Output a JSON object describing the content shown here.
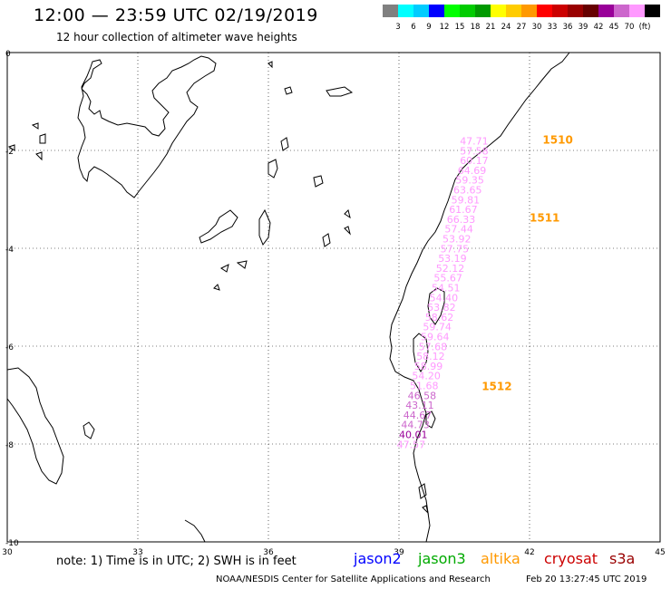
{
  "header": {
    "title": "12:00 — 23:59 UTC 02/19/2019",
    "subtitle": "12 hour collection of altimeter wave heights"
  },
  "colorbar": {
    "colors": [
      "#808080",
      "#00ffff",
      "#00ccff",
      "#0000ff",
      "#00ff00",
      "#00cc00",
      "#009900",
      "#ffff00",
      "#ffcc00",
      "#ff9900",
      "#ff0000",
      "#cc0000",
      "#990000",
      "#660000",
      "#990099",
      "#cc66cc",
      "#ff99ff",
      "#000000"
    ],
    "labels": [
      "3",
      "6",
      "9",
      "12",
      "15",
      "18",
      "21",
      "24",
      "27",
      "30",
      "33",
      "36",
      "39",
      "42",
      "45",
      "70",
      "(ft)"
    ]
  },
  "axes": {
    "x_ticks": [
      "30",
      "33",
      "36",
      "39",
      "42",
      "45"
    ],
    "y_ticks": [
      "0",
      "-2",
      "-4",
      "-6",
      "-8",
      "-10"
    ],
    "lon_range": [
      30,
      45
    ],
    "lat_range": [
      -10,
      0
    ],
    "grid": true
  },
  "passes": [
    {
      "label": "1510",
      "lon": 42.3,
      "lat": -1.86
    },
    {
      "label": "1511",
      "lon": 42.0,
      "lat": -3.45
    },
    {
      "label": "1512",
      "lon": 40.9,
      "lat": -6.9
    }
  ],
  "swh_readings": [
    {
      "value": "47.71",
      "lon": 40.4,
      "lat": -1.88,
      "color": "#ff99ff"
    },
    {
      "value": "57.58",
      "lon": 40.4,
      "lat": -2.08,
      "color": "#ff99ff"
    },
    {
      "value": "60.17",
      "lon": 40.4,
      "lat": -2.28,
      "color": "#ff99ff"
    },
    {
      "value": "64.69",
      "lon": 40.35,
      "lat": -2.48,
      "color": "#ff99ff"
    },
    {
      "value": "59.35",
      "lon": 40.3,
      "lat": -2.68,
      "color": "#ff99ff"
    },
    {
      "value": "63.65",
      "lon": 40.25,
      "lat": -2.88,
      "color": "#ff99ff"
    },
    {
      "value": "59.81",
      "lon": 40.2,
      "lat": -3.08,
      "color": "#ff99ff"
    },
    {
      "value": "61.67",
      "lon": 40.15,
      "lat": -3.28,
      "color": "#ff99ff"
    },
    {
      "value": "66.33",
      "lon": 40.1,
      "lat": -3.48,
      "color": "#ff99ff"
    },
    {
      "value": "57.44",
      "lon": 40.05,
      "lat": -3.68,
      "color": "#ff99ff"
    },
    {
      "value": "53.92",
      "lon": 40.0,
      "lat": -3.88,
      "color": "#ff99ff"
    },
    {
      "value": "57.75",
      "lon": 39.95,
      "lat": -4.08,
      "color": "#ff99ff"
    },
    {
      "value": "53.19",
      "lon": 39.9,
      "lat": -4.28,
      "color": "#ff99ff"
    },
    {
      "value": "52.12",
      "lon": 39.85,
      "lat": -4.48,
      "color": "#ff99ff"
    },
    {
      "value": "55.67",
      "lon": 39.8,
      "lat": -4.68,
      "color": "#ff99ff"
    },
    {
      "value": "54.51",
      "lon": 39.75,
      "lat": -4.88,
      "color": "#ff99ff"
    },
    {
      "value": "54.40",
      "lon": 39.7,
      "lat": -5.08,
      "color": "#ff99ff"
    },
    {
      "value": "53.82",
      "lon": 39.65,
      "lat": -5.28,
      "color": "#ff99ff"
    },
    {
      "value": "58.62",
      "lon": 39.6,
      "lat": -5.48,
      "color": "#ff99ff"
    },
    {
      "value": "59.74",
      "lon": 39.55,
      "lat": -5.68,
      "color": "#ff99ff"
    },
    {
      "value": "59.64",
      "lon": 39.5,
      "lat": -5.88,
      "color": "#ff99ff"
    },
    {
      "value": "57.68",
      "lon": 39.45,
      "lat": -6.08,
      "color": "#ff99ff"
    },
    {
      "value": "58.12",
      "lon": 39.4,
      "lat": -6.28,
      "color": "#ff99ff"
    },
    {
      "value": "58.99",
      "lon": 39.35,
      "lat": -6.48,
      "color": "#ff99ff"
    },
    {
      "value": "54.20",
      "lon": 39.3,
      "lat": -6.68,
      "color": "#ff99ff"
    },
    {
      "value": "51.68",
      "lon": 39.25,
      "lat": -6.88,
      "color": "#ff99ff"
    },
    {
      "value": "46.58",
      "lon": 39.2,
      "lat": -7.08,
      "color": "#cc66cc"
    },
    {
      "value": "43.11",
      "lon": 39.15,
      "lat": -7.28,
      "color": "#cc66cc"
    },
    {
      "value": "44.67",
      "lon": 39.1,
      "lat": -7.48,
      "color": "#cc66cc"
    },
    {
      "value": "44.73",
      "lon": 39.05,
      "lat": -7.68,
      "color": "#cc66cc"
    },
    {
      "value": "40.01",
      "lon": 39.0,
      "lat": -7.88,
      "color": "#990099"
    },
    {
      "value": "47.57",
      "lon": 38.95,
      "lat": -8.08,
      "color": "#ff99ff"
    }
  ],
  "footer": {
    "note": "note: 1) Time is in UTC; 2) SWH is in feet",
    "satellites": [
      {
        "name": "jason2",
        "color": "#0000ff"
      },
      {
        "name": "jason3",
        "color": "#00aa00"
      },
      {
        "name": "altika",
        "color": "#ff9900"
      },
      {
        "name": "cryosat",
        "color": "#cc0000"
      },
      {
        "name": "s3a",
        "color": "#990000"
      }
    ],
    "credit": "NOAA/NESDIS Center for Satellite Applications and Research",
    "timestamp": "Feb 20 13:27:45 UTC 2019"
  }
}
